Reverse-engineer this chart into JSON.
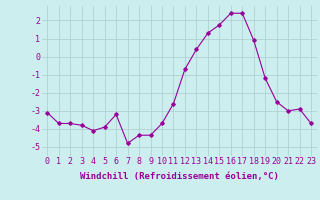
{
  "x": [
    0,
    1,
    2,
    3,
    4,
    5,
    6,
    7,
    8,
    9,
    10,
    11,
    12,
    13,
    14,
    15,
    16,
    17,
    18,
    19,
    20,
    21,
    22,
    23
  ],
  "y": [
    -3.1,
    -3.7,
    -3.7,
    -3.8,
    -4.1,
    -3.9,
    -3.2,
    -4.8,
    -4.35,
    -4.35,
    -3.7,
    -2.6,
    -0.7,
    0.4,
    1.3,
    1.75,
    2.4,
    2.4,
    0.9,
    -1.2,
    -2.5,
    -3.0,
    -2.9,
    -3.7
  ],
  "line_color": "#990099",
  "marker": "D",
  "marker_size": 1.8,
  "line_width": 0.8,
  "bg_color": "#cceeee",
  "grid_color": "#aacccc",
  "tick_label_color": "#990099",
  "axis_label_color": "#990099",
  "xlabel": "Windchill (Refroidissement éolien,°C)",
  "ylabel": "",
  "ylim": [
    -5.5,
    2.8
  ],
  "yticks": [
    -5,
    -4,
    -3,
    -2,
    -1,
    0,
    1,
    2
  ],
  "xticks": [
    0,
    1,
    2,
    3,
    4,
    5,
    6,
    7,
    8,
    9,
    10,
    11,
    12,
    13,
    14,
    15,
    16,
    17,
    18,
    19,
    20,
    21,
    22,
    23
  ],
  "xlabel_fontsize": 6.5,
  "tick_fontsize": 6.0
}
